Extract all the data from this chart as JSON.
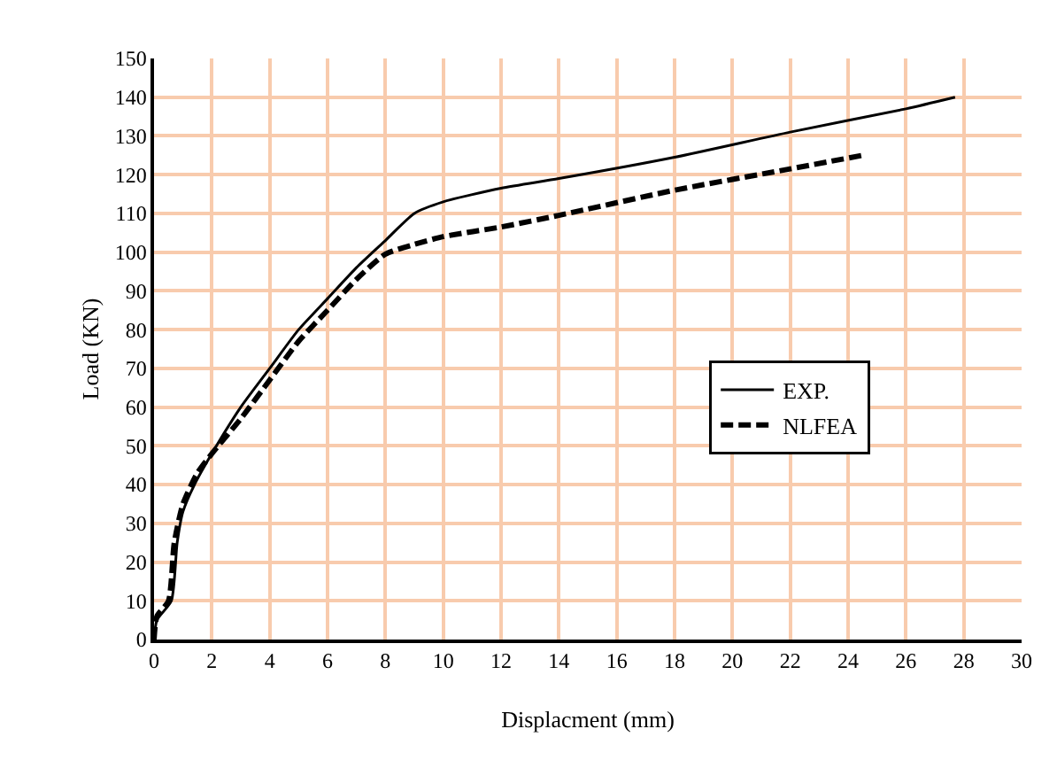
{
  "chart_data": {
    "type": "line",
    "xlabel": "Displacment (mm)",
    "ylabel": "Load (KN)",
    "xlim": [
      0,
      30
    ],
    "xticks": [
      0,
      2,
      4,
      6,
      8,
      10,
      12,
      14,
      16,
      18,
      20,
      22,
      24,
      26,
      28,
      30
    ],
    "ylim": [
      0,
      150
    ],
    "yticks": [
      0,
      10,
      20,
      30,
      40,
      50,
      60,
      70,
      80,
      90,
      100,
      110,
      120,
      130,
      140,
      150
    ],
    "grid": true,
    "legend": "right",
    "marker": "none",
    "series": [
      {
        "name": "EXP.",
        "color": "#000000",
        "line_style": "solid",
        "x": [
          0,
          0.1,
          0.6,
          0.8,
          1,
          1.4,
          2,
          3,
          4,
          5,
          6,
          7,
          8,
          9,
          10,
          12,
          14,
          18,
          22,
          26,
          27.7
        ],
        "values": [
          0,
          5,
          10,
          25,
          33,
          40,
          48,
          60,
          70,
          80,
          88,
          96,
          103,
          110,
          113,
          116.5,
          119,
          124.5,
          131,
          137,
          140
        ]
      },
      {
        "name": "NLFEA",
        "color": "#000000",
        "line_style": "dashed",
        "x": [
          0,
          0.1,
          0.5,
          0.7,
          1,
          1.5,
          2,
          3,
          4,
          5,
          6,
          7,
          8,
          9,
          10,
          12,
          14,
          18,
          22,
          24.5
        ],
        "values": [
          0,
          6,
          10,
          25,
          35,
          43,
          48,
          57,
          67,
          77,
          85,
          93,
          99.5,
          102,
          104,
          106.5,
          109.5,
          116,
          121.5,
          125
        ]
      }
    ]
  }
}
